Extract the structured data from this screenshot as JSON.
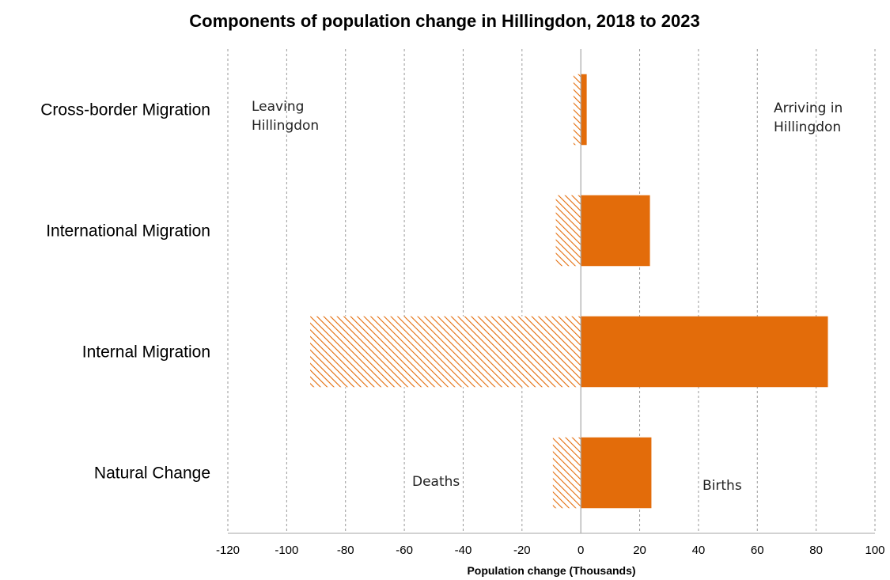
{
  "chart_data": {
    "type": "bar",
    "orientation": "horizontal",
    "title": "Components of population change in Hillingdon, 2018 to 2023",
    "xlabel": "Population change (Thousands)",
    "xlim": [
      -120,
      100
    ],
    "xticks": [
      -120,
      -100,
      -80,
      -60,
      -40,
      -20,
      0,
      20,
      40,
      60,
      80,
      100
    ],
    "grid": true,
    "categories": [
      "Cross-border Migration",
      "International Migration",
      "Internal Migration",
      "Natural Change"
    ],
    "series": [
      {
        "key": "outflow",
        "fill": "hatched",
        "color": "#E36C0A",
        "values": [
          -2.5,
          -8.5,
          -92,
          -9.5
        ]
      },
      {
        "key": "inflow",
        "fill": "solid",
        "color": "#E36C0A",
        "values": [
          2,
          23.5,
          84,
          24
        ]
      }
    ],
    "annotations": [
      {
        "key": "leaving",
        "lines": [
          "Leaving",
          "Hillingdon"
        ]
      },
      {
        "key": "arriving",
        "lines": [
          "Arriving in",
          "Hillingdon"
        ]
      },
      {
        "key": "deaths",
        "lines": [
          "Deaths"
        ]
      },
      {
        "key": "births",
        "lines": [
          "Births"
        ]
      }
    ]
  }
}
